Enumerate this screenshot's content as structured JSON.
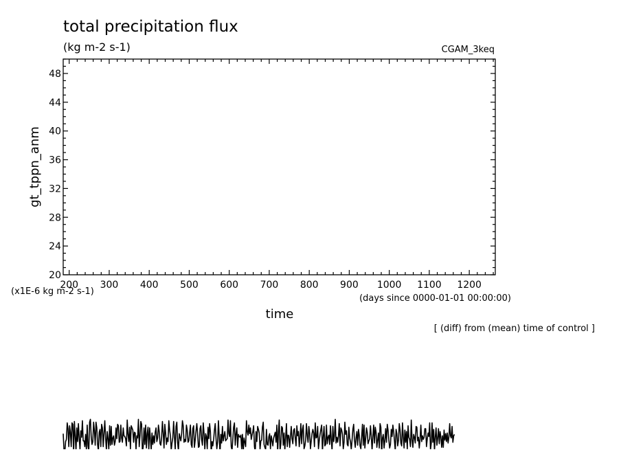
{
  "chart_data": {
    "type": "line",
    "title": "total precipitation flux",
    "subtitle": "(kg m-2 s-1)",
    "right_label": "CGAM_3keq",
    "xlabel": "time",
    "ylabel": "gt_tppn_anm",
    "x_units": "(days since 0000-01-01 00:00:00)",
    "y_scale_note": "(x1E-6 kg m-2 s-1)",
    "note": "[ (diff) from (mean) time of control ]",
    "xlim": [
      185,
      1265
    ],
    "ylim": [
      20,
      50
    ],
    "x_ticks": [
      200,
      300,
      400,
      500,
      600,
      700,
      800,
      900,
      1000,
      1100,
      1200
    ],
    "y_ticks": [
      20,
      24,
      28,
      32,
      36,
      40,
      44,
      48
    ],
    "series": [
      {
        "x_start": 185,
        "x_step": 2,
        "values": [
          -2.1,
          -4.4,
          -4.7,
          -3.2,
          -2.9,
          -0.6,
          -1.4,
          -3.9,
          -1.0,
          -1.9,
          -3.9,
          -0.6,
          -0.8,
          -4.8,
          -0.4,
          -2.4,
          -4.5,
          -1.3,
          -3.2,
          -0.7,
          -2.7,
          -4.3,
          -1.7,
          -2.6,
          -0.3,
          -3.1,
          -3.1,
          -3.9,
          -2.2,
          -4.4,
          -0.9,
          -3.8,
          -4.5,
          -0.5,
          -0.1,
          -2.5,
          -3.6,
          -3.2,
          -0.5,
          -1.7,
          -3.7,
          -0.5,
          -1.3,
          -3.6,
          -4.5,
          -1.9,
          -1.5,
          -3.9,
          -0.8,
          -1.3,
          -3.9,
          -2.0,
          -0.3,
          -2.7,
          -4.4,
          -1.8,
          -2.8,
          -4.3,
          -1.0,
          -3.7,
          -1.1,
          -3.6,
          -2.7,
          -2.4,
          -3.7,
          -3.2,
          -1.3,
          -2.8,
          -0.8,
          -1.0,
          -3.3,
          -3.2,
          -0.9,
          -2.7,
          -3.3,
          -1.3,
          -2.4,
          -2.5,
          -2.8,
          -3.8,
          -0.2,
          -2.2,
          -3.2,
          -1.2,
          -4.2,
          -1.0,
          -1.3,
          -1.6,
          -3.3,
          -1.9,
          -2.0,
          -4.3,
          -2.4,
          -2.7,
          -0.1,
          -3.9,
          -2.4,
          -0.4,
          -0.8,
          -4.7,
          -3.9,
          -1.3,
          -3.6,
          -0.9,
          -4.1,
          -2.1,
          -1.2,
          -4.4,
          -1.3,
          -2.8,
          -4.4,
          -2.0,
          -3.6,
          -2.4,
          -3.4,
          -1.9,
          -1.3,
          -3.2,
          -2.7,
          -0.9,
          -1.8,
          -3.5,
          -3.7,
          -2.6,
          -0.4,
          -2.0,
          -4.1,
          -0.8,
          -2.0,
          -3.6,
          -2.7,
          -3.2,
          -0.3,
          -1.6,
          -2.4,
          -4.4,
          -3.4,
          -2.6,
          -0.4,
          -2.5,
          -4.3,
          -1.1,
          -0.5,
          -3.3,
          -4.5,
          -2.1,
          -2.6,
          -3.1,
          -2.1,
          -0.3,
          -1.0,
          -3.3,
          -2.9,
          -3.2,
          -0.9,
          -1.6,
          -3.3,
          -3.1,
          -2.0,
          -0.9,
          -3.6,
          -4.0,
          -1.4,
          -1.0,
          -4.0,
          -3.0,
          -1.7,
          -0.7,
          -2.1,
          -4.0,
          -3.9,
          -1.4,
          -1.0,
          -2.9,
          -3.7,
          -0.6,
          -2.0,
          -4.3,
          -2.1,
          -2.5,
          -4.2,
          -1.2,
          -2.8,
          -0.7,
          -1.9,
          -4.9,
          -3.2,
          -3.8,
          -2.9,
          -1.6,
          -0.7,
          -2.8,
          -4.2,
          -3.2,
          -0.3,
          -2.6,
          -4.9,
          -2.2,
          -3.4,
          -1.1,
          -3.1,
          -2.4,
          -1.8,
          -3.1,
          -2.9,
          -2.8,
          -0.2,
          -2.1,
          -2.5,
          -0.3,
          -3.9,
          -4.4,
          -2.8,
          -1.2,
          -0.6,
          -3.7,
          -2.1,
          -1.3,
          -4.0,
          -2.2,
          -2.5,
          -2.6,
          -2.3,
          -4.2,
          -2.2,
          -4.6,
          -2.7,
          -3.3,
          -3.9,
          -0.3,
          -1.8,
          -2.3,
          -0.9,
          -2.1,
          -1.3,
          -2.9,
          -2.3,
          -1.8,
          -1.0,
          -3.9,
          -4.7,
          -1.8,
          -3.2,
          -1.1,
          -1.5,
          -2.0,
          -4.3,
          -3.1,
          -3.0,
          -1.2,
          -0.5,
          -3.6,
          -4.0,
          -4.3,
          -1.5,
          -3.6,
          -3.7,
          -2.5,
          -2.1,
          -4.2,
          -2.4,
          -3.1,
          -3.8,
          -2.7,
          -2.3,
          -1.9,
          -3.3,
          -0.9,
          -4.8,
          -1.8,
          -0.2,
          -4.4,
          -3.5,
          -1.1,
          -1.3,
          -3.7,
          -2.0,
          -4.4,
          -2.6,
          -0.7,
          -3.9,
          -2.3,
          -2.4,
          -4.0,
          -2.5,
          -1.1,
          -2.8,
          -3.5,
          -1.6,
          -1.4,
          -2.7,
          -3.8,
          -1.0,
          -2.4,
          -1.8,
          -3.9,
          -2.6,
          -0.7,
          -3.5,
          -1.5,
          -0.9,
          -4.2,
          -3.8,
          -3.0,
          -0.7,
          -2.4,
          -3.3,
          -1.1,
          -2.1,
          -4.2,
          -3.1,
          -2.1,
          -1.5,
          -2.0,
          -3.9,
          -0.6,
          -2.7,
          -2.6,
          -1.1,
          -4.2,
          -3.1,
          -2.2,
          -1.5,
          -0.9,
          -4.6,
          -2.5,
          -1.1,
          -3.8,
          -3.6,
          -0.9,
          -3.5,
          -2.6,
          -2.3,
          -3.6,
          -1.0,
          -2.9,
          -4.5,
          -1.1,
          -3.2,
          -2.4,
          -0.1,
          -3.4,
          -2.6,
          -3.3,
          -2.4,
          -0.7,
          -3.8,
          -1.3,
          -1.6,
          -2.2,
          -4.2,
          -3.3,
          -0.5,
          -2.2,
          -1.7,
          -3.6,
          -3.8,
          -1.2,
          -2.7,
          -3.2,
          -4.3,
          -3.0,
          -1.5,
          -0.8,
          -3.0,
          -4.0,
          -2.7,
          -1.8,
          -3.7,
          -1.5,
          -2.3,
          -3.8,
          -4.2,
          -2.5,
          -0.8,
          -3.7,
          -0.9,
          -4.1,
          -2.8,
          -1.3,
          -1.9,
          -3.5,
          -3.1,
          -2.8,
          -1.0,
          -2.4,
          -4.4,
          -2.5,
          -0.9,
          -3.4,
          -1.2,
          -1.9,
          -4.0,
          -3.0,
          -2.0,
          -4.1,
          -0.7,
          -1.2,
          -4.9,
          -2.7,
          -2.2,
          -4.1,
          -3.0,
          -1.4,
          -3.3,
          -0.8,
          -1.6,
          -3.0,
          -4.1,
          -3.6,
          -1.5,
          -2.5,
          -0.9,
          -1.8,
          -3.1,
          -4.5,
          -1.5,
          -2.1,
          -3.8,
          -3.0,
          -0.7,
          -1.6,
          -3.4,
          -3.8,
          -0.6,
          -2.5,
          -4.1,
          -1.6,
          -3.3,
          -1.8,
          -4.2,
          -1.0,
          -2.6,
          -2.9,
          -3.9,
          -0.2,
          -2.9,
          -4.0,
          -2.2,
          -2.6,
          -3.4,
          -1.1,
          -1.2,
          -3.1,
          -2.6,
          -4.1,
          -2.8,
          -0.9,
          -3.2,
          -2.4,
          -2.9,
          -2.6,
          -1.4,
          -1.4,
          -3.9,
          -2.8,
          -2.0,
          -2.5,
          -0.6,
          -4.4,
          -3.4,
          -0.6,
          -3.3,
          -1.5,
          -4.5,
          -2.6,
          -1.3,
          -3.7,
          -2.7,
          -1.4,
          -3.5,
          -1.8,
          -2.6,
          -4.0,
          -2.4,
          -4.0,
          -1.6,
          -3.0,
          -2.1,
          -3.2,
          -2.0,
          -3.4,
          -2.6,
          -0.7,
          -2.4,
          -2.7,
          -1.1,
          -3.3,
          -2.4,
          -2.2
        ]
      }
    ]
  }
}
